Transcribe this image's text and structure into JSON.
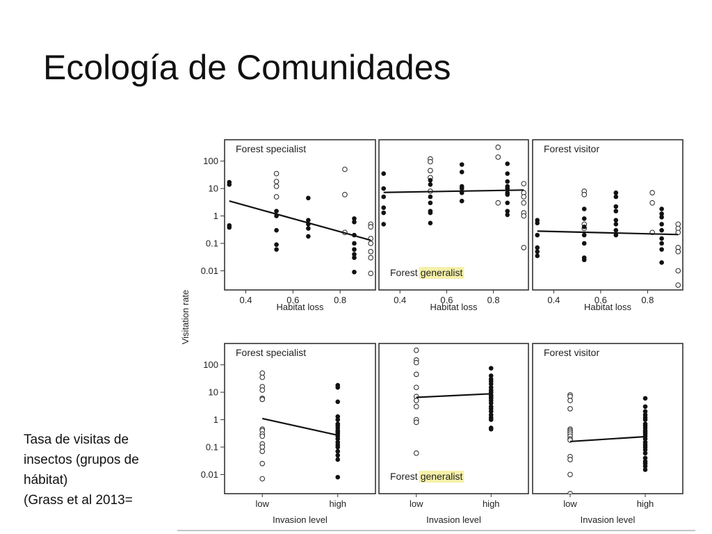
{
  "slide": {
    "title": "Ecología de Comunidades",
    "caption_lines": [
      "Tasa de visitas de",
      "insectos (grupos de",
      "hábitat)",
      "(Grass et al 2013="
    ]
  },
  "colors": {
    "filled": "#111111",
    "hollow_stroke": "#333333",
    "highlight": "#f5f0a8",
    "line": "#111111"
  },
  "chart_data": [
    {
      "type": "scatter",
      "panel": "top-left",
      "label": "Forest specialist",
      "xlabel": "Habitat loss",
      "ylabel": "Visitation rate",
      "yscale": "log",
      "xlim": [
        0.31,
        0.95
      ],
      "xticks": [
        "0.4",
        "0.6",
        "0.8"
      ],
      "xtick_values": [
        0.4,
        0.6,
        0.8
      ],
      "ylim": [
        0.002,
        600
      ],
      "yticks": [
        "100",
        "10",
        "1",
        "0.1",
        "0.01"
      ],
      "ytick_values": [
        100,
        10,
        1,
        0.1,
        0.01
      ],
      "filled": [
        [
          0.33,
          17
        ],
        [
          0.33,
          14
        ],
        [
          0.33,
          0.45
        ],
        [
          0.33,
          0.38
        ],
        [
          0.53,
          1.5
        ],
        [
          0.53,
          1.0
        ],
        [
          0.53,
          0.3
        ],
        [
          0.53,
          0.09
        ],
        [
          0.53,
          0.06
        ],
        [
          0.665,
          4.5
        ],
        [
          0.665,
          0.7
        ],
        [
          0.665,
          0.5
        ],
        [
          0.665,
          0.35
        ],
        [
          0.665,
          0.18
        ],
        [
          0.86,
          0.8
        ],
        [
          0.86,
          0.6
        ],
        [
          0.86,
          0.2
        ],
        [
          0.86,
          0.1
        ],
        [
          0.86,
          0.06
        ],
        [
          0.86,
          0.04
        ],
        [
          0.86,
          0.03
        ],
        [
          0.86,
          0.009
        ]
      ],
      "hollow": [
        [
          0.53,
          35
        ],
        [
          0.53,
          18
        ],
        [
          0.53,
          12
        ],
        [
          0.53,
          5
        ],
        [
          0.82,
          50
        ],
        [
          0.82,
          6
        ],
        [
          0.82,
          0.25
        ],
        [
          0.93,
          0.5
        ],
        [
          0.93,
          0.4
        ],
        [
          0.93,
          0.15
        ],
        [
          0.93,
          0.1
        ],
        [
          0.93,
          0.05
        ],
        [
          0.93,
          0.03
        ],
        [
          0.93,
          0.008
        ]
      ],
      "fit": [
        [
          0.33,
          3.5
        ],
        [
          0.93,
          0.13
        ]
      ]
    },
    {
      "type": "scatter",
      "panel": "top-middle",
      "label": "Forest generalist",
      "label_plain": "Forest",
      "label_highlight": "generalist",
      "label_position": "bottom-left",
      "xlabel": "Habitat loss",
      "xlim": [
        0.31,
        0.95
      ],
      "xticks": [
        "0.4",
        "0.6",
        "0.8"
      ],
      "xtick_values": [
        0.4,
        0.6,
        0.8
      ],
      "ylim": [
        0.002,
        600
      ],
      "yscale": "log",
      "filled": [
        [
          0.33,
          35
        ],
        [
          0.33,
          10
        ],
        [
          0.33,
          5
        ],
        [
          0.33,
          2
        ],
        [
          0.33,
          1.3
        ],
        [
          0.33,
          0.5
        ],
        [
          0.53,
          20
        ],
        [
          0.53,
          14
        ],
        [
          0.53,
          5
        ],
        [
          0.53,
          3
        ],
        [
          0.53,
          1.5
        ],
        [
          0.53,
          1.3
        ],
        [
          0.53,
          0.55
        ],
        [
          0.665,
          75
        ],
        [
          0.665,
          40
        ],
        [
          0.665,
          12
        ],
        [
          0.665,
          10
        ],
        [
          0.665,
          7
        ],
        [
          0.665,
          3.5
        ],
        [
          0.86,
          80
        ],
        [
          0.86,
          35
        ],
        [
          0.86,
          18
        ],
        [
          0.86,
          12
        ],
        [
          0.86,
          10
        ],
        [
          0.86,
          7
        ],
        [
          0.86,
          6
        ],
        [
          0.86,
          3
        ],
        [
          0.86,
          1.5
        ],
        [
          0.86,
          1.1
        ]
      ],
      "hollow": [
        [
          0.53,
          120
        ],
        [
          0.53,
          95
        ],
        [
          0.53,
          45
        ],
        [
          0.53,
          25
        ],
        [
          0.53,
          8
        ],
        [
          0.82,
          320
        ],
        [
          0.82,
          140
        ],
        [
          0.82,
          3
        ],
        [
          0.93,
          15
        ],
        [
          0.93,
          7
        ],
        [
          0.93,
          5
        ],
        [
          0.93,
          3
        ],
        [
          0.93,
          1.3
        ],
        [
          0.93,
          1.0
        ],
        [
          0.93,
          0.07
        ]
      ],
      "fit": [
        [
          0.33,
          7.2
        ],
        [
          0.93,
          8.8
        ]
      ]
    },
    {
      "type": "scatter",
      "panel": "top-right",
      "label": "Forest visitor",
      "xlabel": "Habitat loss",
      "xlim": [
        0.31,
        0.95
      ],
      "xticks": [
        "0.4",
        "0.6",
        "0.8"
      ],
      "xtick_values": [
        0.4,
        0.6,
        0.8
      ],
      "ylim": [
        0.002,
        600
      ],
      "yscale": "log",
      "filled": [
        [
          0.33,
          0.7
        ],
        [
          0.33,
          0.55
        ],
        [
          0.33,
          0.2
        ],
        [
          0.33,
          0.07
        ],
        [
          0.33,
          0.05
        ],
        [
          0.33,
          0.035
        ],
        [
          0.53,
          1.8
        ],
        [
          0.53,
          0.8
        ],
        [
          0.53,
          0.4
        ],
        [
          0.53,
          0.2
        ],
        [
          0.53,
          0.1
        ],
        [
          0.53,
          0.03
        ],
        [
          0.53,
          0.025
        ],
        [
          0.665,
          7
        ],
        [
          0.665,
          5
        ],
        [
          0.665,
          2.2
        ],
        [
          0.665,
          1.5
        ],
        [
          0.665,
          0.7
        ],
        [
          0.665,
          0.5
        ],
        [
          0.665,
          0.3
        ],
        [
          0.665,
          0.2
        ],
        [
          0.86,
          1.8
        ],
        [
          0.86,
          1.2
        ],
        [
          0.86,
          0.9
        ],
        [
          0.86,
          0.5
        ],
        [
          0.86,
          0.3
        ],
        [
          0.86,
          0.15
        ],
        [
          0.86,
          0.1
        ],
        [
          0.86,
          0.06
        ],
        [
          0.86,
          0.02
        ]
      ],
      "hollow": [
        [
          0.53,
          8
        ],
        [
          0.53,
          6
        ],
        [
          0.53,
          0.5
        ],
        [
          0.53,
          0.35
        ],
        [
          0.82,
          7
        ],
        [
          0.82,
          3
        ],
        [
          0.82,
          0.25
        ],
        [
          0.93,
          0.5
        ],
        [
          0.93,
          0.35
        ],
        [
          0.93,
          0.25
        ],
        [
          0.93,
          0.07
        ],
        [
          0.93,
          0.05
        ],
        [
          0.93,
          0.01
        ],
        [
          0.93,
          0.003
        ]
      ],
      "fit": [
        [
          0.33,
          0.28
        ],
        [
          0.93,
          0.21
        ]
      ]
    },
    {
      "type": "scatter",
      "panel": "bottom-left",
      "label": "Forest specialist",
      "xlabel": "Invasion level",
      "ylabel": "Visitation rate",
      "yscale": "log",
      "xlim": [
        0.5,
        2.5
      ],
      "xticks": [
        "low",
        "high"
      ],
      "xtick_values": [
        1,
        2
      ],
      "ylim": [
        0.002,
        600
      ],
      "yticks": [
        "100",
        "10",
        "1",
        "0.1",
        "0.01"
      ],
      "ytick_values": [
        100,
        10,
        1,
        0.1,
        0.01
      ],
      "filled": [
        [
          2.0,
          18
        ],
        [
          2.0,
          15
        ],
        [
          2.0,
          4.5
        ],
        [
          2.0,
          1.3
        ],
        [
          2.0,
          1.0
        ],
        [
          2.0,
          0.7
        ],
        [
          2.0,
          0.6
        ],
        [
          2.0,
          0.5
        ],
        [
          2.0,
          0.4
        ],
        [
          2.0,
          0.35
        ],
        [
          2.0,
          0.3
        ],
        [
          2.0,
          0.25
        ],
        [
          2.0,
          0.2
        ],
        [
          2.0,
          0.15
        ],
        [
          2.0,
          0.12
        ],
        [
          2.0,
          0.1
        ],
        [
          2.0,
          0.07
        ],
        [
          2.0,
          0.05
        ],
        [
          2.0,
          0.035
        ],
        [
          2.0,
          0.008
        ]
      ],
      "hollow": [
        [
          1.0,
          50
        ],
        [
          1.0,
          35
        ],
        [
          1.0,
          16
        ],
        [
          1.0,
          12
        ],
        [
          1.0,
          6
        ],
        [
          1.0,
          5.5
        ],
        [
          1.0,
          0.45
        ],
        [
          1.0,
          0.4
        ],
        [
          1.0,
          0.3
        ],
        [
          1.0,
          0.25
        ],
        [
          1.0,
          0.13
        ],
        [
          1.0,
          0.1
        ],
        [
          1.0,
          0.07
        ],
        [
          1.0,
          0.025
        ],
        [
          1.0,
          0.007
        ]
      ],
      "fit": [
        [
          1.0,
          1.1
        ],
        [
          2.0,
          0.27
        ]
      ]
    },
    {
      "type": "scatter",
      "panel": "bottom-middle",
      "label": "Forest generalist",
      "label_plain": "Forest",
      "label_highlight": "generalist",
      "label_position": "bottom-left",
      "xlabel": "Invasion level",
      "xlim": [
        0.5,
        2.5
      ],
      "xticks": [
        "low",
        "high"
      ],
      "xtick_values": [
        1,
        2
      ],
      "ylim": [
        0.002,
        600
      ],
      "yscale": "log",
      "filled": [
        [
          2.0,
          75
        ],
        [
          2.0,
          40
        ],
        [
          2.0,
          30
        ],
        [
          2.0,
          25
        ],
        [
          2.0,
          20
        ],
        [
          2.0,
          15
        ],
        [
          2.0,
          12
        ],
        [
          2.0,
          10
        ],
        [
          2.0,
          8
        ],
        [
          2.0,
          7
        ],
        [
          2.0,
          6
        ],
        [
          2.0,
          5
        ],
        [
          2.0,
          4
        ],
        [
          2.0,
          3
        ],
        [
          2.0,
          2.5
        ],
        [
          2.0,
          2
        ],
        [
          2.0,
          1.5
        ],
        [
          2.0,
          1.2
        ],
        [
          2.0,
          1.0
        ],
        [
          2.0,
          0.5
        ],
        [
          2.0,
          0.45
        ]
      ],
      "hollow": [
        [
          1.0,
          340
        ],
        [
          1.0,
          150
        ],
        [
          1.0,
          120
        ],
        [
          1.0,
          45
        ],
        [
          1.0,
          15
        ],
        [
          1.0,
          7
        ],
        [
          1.0,
          5
        ],
        [
          1.0,
          3
        ],
        [
          1.0,
          1.0
        ],
        [
          1.0,
          0.8
        ],
        [
          1.0,
          0.06
        ]
      ],
      "fit": [
        [
          1.0,
          6.5
        ],
        [
          2.0,
          8.8
        ]
      ]
    },
    {
      "type": "scatter",
      "panel": "bottom-right",
      "label": "Forest visitor",
      "xlabel": "Invasion level",
      "xlim": [
        0.5,
        2.5
      ],
      "xticks": [
        "low",
        "high"
      ],
      "xtick_values": [
        1,
        2
      ],
      "ylim": [
        0.002,
        600
      ],
      "yscale": "log",
      "filled": [
        [
          2.0,
          6
        ],
        [
          2.0,
          3
        ],
        [
          2.0,
          2
        ],
        [
          2.0,
          1.5
        ],
        [
          2.0,
          1.2
        ],
        [
          2.0,
          1.0
        ],
        [
          2.0,
          0.7
        ],
        [
          2.0,
          0.6
        ],
        [
          2.0,
          0.5
        ],
        [
          2.0,
          0.4
        ],
        [
          2.0,
          0.35
        ],
        [
          2.0,
          0.3
        ],
        [
          2.0,
          0.25
        ],
        [
          2.0,
          0.2
        ],
        [
          2.0,
          0.15
        ],
        [
          2.0,
          0.12
        ],
        [
          2.0,
          0.1
        ],
        [
          2.0,
          0.08
        ],
        [
          2.0,
          0.06
        ],
        [
          2.0,
          0.04
        ],
        [
          2.0,
          0.03
        ],
        [
          2.0,
          0.025
        ],
        [
          2.0,
          0.02
        ],
        [
          2.0,
          0.015
        ]
      ],
      "hollow": [
        [
          1.0,
          8
        ],
        [
          1.0,
          7
        ],
        [
          1.0,
          5
        ],
        [
          1.0,
          2.5
        ],
        [
          1.0,
          0.45
        ],
        [
          1.0,
          0.4
        ],
        [
          1.0,
          0.35
        ],
        [
          1.0,
          0.3
        ],
        [
          1.0,
          0.25
        ],
        [
          1.0,
          0.2
        ],
        [
          1.0,
          0.18
        ],
        [
          1.0,
          0.045
        ],
        [
          1.0,
          0.035
        ],
        [
          1.0,
          0.01
        ],
        [
          1.0,
          0.002
        ]
      ],
      "fit": [
        [
          1.0,
          0.16
        ],
        [
          2.0,
          0.24
        ]
      ]
    }
  ]
}
